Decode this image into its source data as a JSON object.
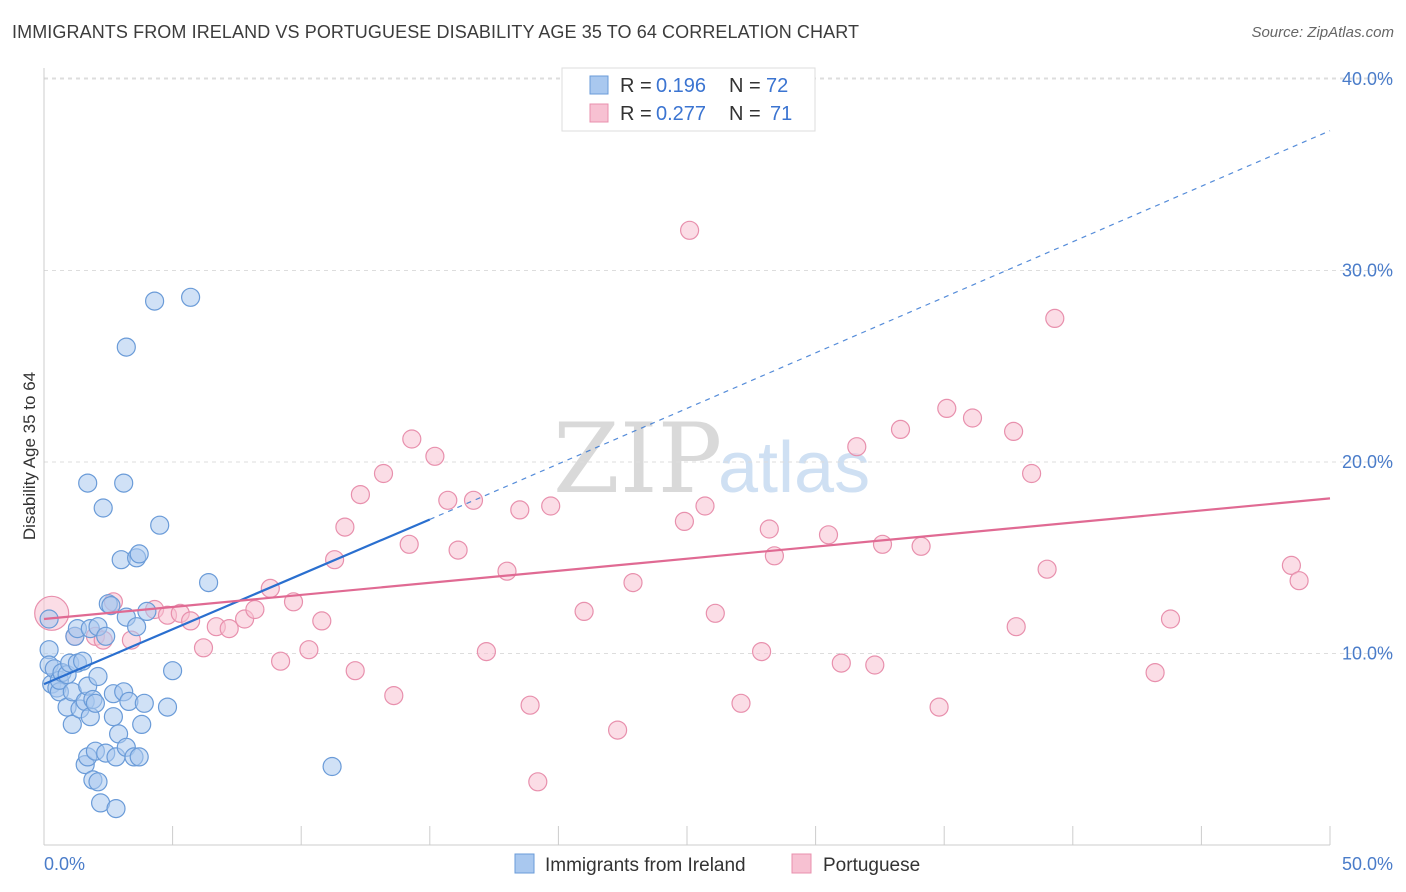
{
  "header": {
    "title": "IMMIGRANTS FROM IRELAND VS PORTUGUESE DISABILITY AGE 35 TO 64 CORRELATION CHART",
    "source": "Source: ZipAtlas.com"
  },
  "watermark": {
    "zip": "ZIP",
    "atlas": "atlas"
  },
  "legend": {
    "rows": [
      {
        "r_label": "R =",
        "r_value": "0.196",
        "n_label": "N =",
        "n_value": "72"
      },
      {
        "r_label": "R =",
        "r_value": "0.277",
        "n_label": "N =",
        "n_value": "71"
      }
    ]
  },
  "colors": {
    "blue_fill": "#a9c8ef",
    "blue_stroke": "#6a9bd8",
    "blue_line": "#2a6fcf",
    "pink_fill": "#f7c1d2",
    "pink_stroke": "#e890ad",
    "pink_line": "#e06a93",
    "grid": "#dddddd",
    "axis_label": "#4a7cc9"
  },
  "chart_data": {
    "type": "scatter",
    "title": "IMMIGRANTS FROM IRELAND VS PORTUGUESE DISABILITY AGE 35 TO 64 CORRELATION CHART",
    "xlabel": "",
    "ylabel": "Disability Age 35 to 64",
    "xlim": [
      0,
      50
    ],
    "ylim": [
      0,
      42
    ],
    "x_tick_labels": [
      "0.0%",
      "50.0%"
    ],
    "y_ticks": [
      10,
      20,
      30,
      40
    ],
    "y_tick_labels": [
      "10.0%",
      "20.0%",
      "30.0%",
      "40.0%"
    ],
    "legend_placement": "top-center",
    "series": [
      {
        "name": "Immigrants from Ireland",
        "r": 0.196,
        "n": 72,
        "trend": {
          "x0": 0,
          "y0": 8.4,
          "x1": 15,
          "y1": 17.0,
          "dashed_to_x": 50,
          "dashed_to_y": 37.3
        },
        "points": [
          [
            0.2,
            11.8
          ],
          [
            0.2,
            10.2
          ],
          [
            0.2,
            9.4
          ],
          [
            0.3,
            8.4
          ],
          [
            0.4,
            9.2
          ],
          [
            0.5,
            8.2
          ],
          [
            0.6,
            8.0
          ],
          [
            0.6,
            8.6
          ],
          [
            0.7,
            9.0
          ],
          [
            0.9,
            7.2
          ],
          [
            0.9,
            8.9
          ],
          [
            1.0,
            9.5
          ],
          [
            1.1,
            6.3
          ],
          [
            1.1,
            8.0
          ],
          [
            1.2,
            10.9
          ],
          [
            1.3,
            9.5
          ],
          [
            1.3,
            11.3
          ],
          [
            1.4,
            7.1
          ],
          [
            1.5,
            9.6
          ],
          [
            1.6,
            4.2
          ],
          [
            1.6,
            7.5
          ],
          [
            1.7,
            8.3
          ],
          [
            1.7,
            4.6
          ],
          [
            1.7,
            18.9
          ],
          [
            1.8,
            11.3
          ],
          [
            1.8,
            6.7
          ],
          [
            1.9,
            7.6
          ],
          [
            1.9,
            3.4
          ],
          [
            2.0,
            4.9
          ],
          [
            2.0,
            7.4
          ],
          [
            2.1,
            3.3
          ],
          [
            2.1,
            11.4
          ],
          [
            2.1,
            8.8
          ],
          [
            2.2,
            2.2
          ],
          [
            2.3,
            17.6
          ],
          [
            2.4,
            10.9
          ],
          [
            2.4,
            4.8
          ],
          [
            2.5,
            12.6
          ],
          [
            2.6,
            12.5
          ],
          [
            2.7,
            7.9
          ],
          [
            2.7,
            6.7
          ],
          [
            2.8,
            4.6
          ],
          [
            2.8,
            1.9
          ],
          [
            2.9,
            5.8
          ],
          [
            3.0,
            14.9
          ],
          [
            3.1,
            18.9
          ],
          [
            3.1,
            8.0
          ],
          [
            3.2,
            5.1
          ],
          [
            3.2,
            26.0
          ],
          [
            3.2,
            11.9
          ],
          [
            3.3,
            7.5
          ],
          [
            3.5,
            4.6
          ],
          [
            3.6,
            15.0
          ],
          [
            3.6,
            11.4
          ],
          [
            3.7,
            15.2
          ],
          [
            3.7,
            4.6
          ],
          [
            3.8,
            6.3
          ],
          [
            3.9,
            7.4
          ],
          [
            4.0,
            12.2
          ],
          [
            4.3,
            28.4
          ],
          [
            4.5,
            16.7
          ],
          [
            4.8,
            7.2
          ],
          [
            5.0,
            9.1
          ],
          [
            5.7,
            28.6
          ],
          [
            6.4,
            13.7
          ],
          [
            11.2,
            4.1
          ]
        ]
      },
      {
        "name": "Portuguese",
        "r": 0.277,
        "n": 71,
        "trend": {
          "x0": 0,
          "y0": 11.8,
          "x1": 50,
          "y1": 18.1
        },
        "points": [
          [
            0.3,
            12.1
          ],
          [
            1.2,
            10.9
          ],
          [
            2.0,
            10.9
          ],
          [
            2.3,
            10.7
          ],
          [
            2.7,
            12.7
          ],
          [
            3.4,
            10.7
          ],
          [
            4.3,
            12.3
          ],
          [
            4.8,
            12.0
          ],
          [
            5.3,
            12.1
          ],
          [
            5.7,
            11.7
          ],
          [
            6.2,
            10.3
          ],
          [
            6.7,
            11.4
          ],
          [
            7.2,
            11.3
          ],
          [
            7.8,
            11.8
          ],
          [
            8.2,
            12.3
          ],
          [
            8.8,
            13.4
          ],
          [
            9.2,
            9.6
          ],
          [
            9.7,
            12.7
          ],
          [
            10.3,
            10.2
          ],
          [
            10.8,
            11.7
          ],
          [
            11.3,
            14.9
          ],
          [
            11.7,
            16.6
          ],
          [
            12.1,
            9.1
          ],
          [
            12.3,
            18.3
          ],
          [
            13.2,
            19.4
          ],
          [
            13.6,
            7.8
          ],
          [
            14.2,
            15.7
          ],
          [
            14.3,
            21.2
          ],
          [
            15.2,
            20.3
          ],
          [
            15.7,
            18.0
          ],
          [
            16.1,
            15.4
          ],
          [
            16.7,
            18.0
          ],
          [
            17.2,
            10.1
          ],
          [
            18.0,
            14.3
          ],
          [
            18.5,
            17.5
          ],
          [
            18.9,
            7.3
          ],
          [
            19.2,
            3.3
          ],
          [
            19.7,
            17.7
          ],
          [
            21.0,
            12.2
          ],
          [
            22.3,
            6.0
          ],
          [
            22.9,
            13.7
          ],
          [
            24.9,
            16.9
          ],
          [
            25.1,
            32.1
          ],
          [
            25.7,
            17.7
          ],
          [
            26.1,
            12.1
          ],
          [
            27.1,
            7.4
          ],
          [
            27.9,
            10.1
          ],
          [
            28.2,
            16.5
          ],
          [
            28.4,
            15.1
          ],
          [
            30.5,
            16.2
          ],
          [
            31.0,
            9.5
          ],
          [
            31.6,
            20.8
          ],
          [
            32.3,
            9.4
          ],
          [
            32.6,
            15.7
          ],
          [
            33.3,
            21.7
          ],
          [
            34.1,
            15.6
          ],
          [
            34.8,
            7.2
          ],
          [
            35.1,
            22.8
          ],
          [
            36.1,
            22.3
          ],
          [
            37.7,
            21.6
          ],
          [
            37.8,
            11.4
          ],
          [
            38.4,
            19.4
          ],
          [
            39.0,
            14.4
          ],
          [
            39.3,
            27.5
          ],
          [
            43.2,
            9.0
          ],
          [
            43.8,
            11.8
          ],
          [
            48.5,
            14.6
          ],
          [
            48.8,
            13.8
          ]
        ]
      }
    ]
  }
}
